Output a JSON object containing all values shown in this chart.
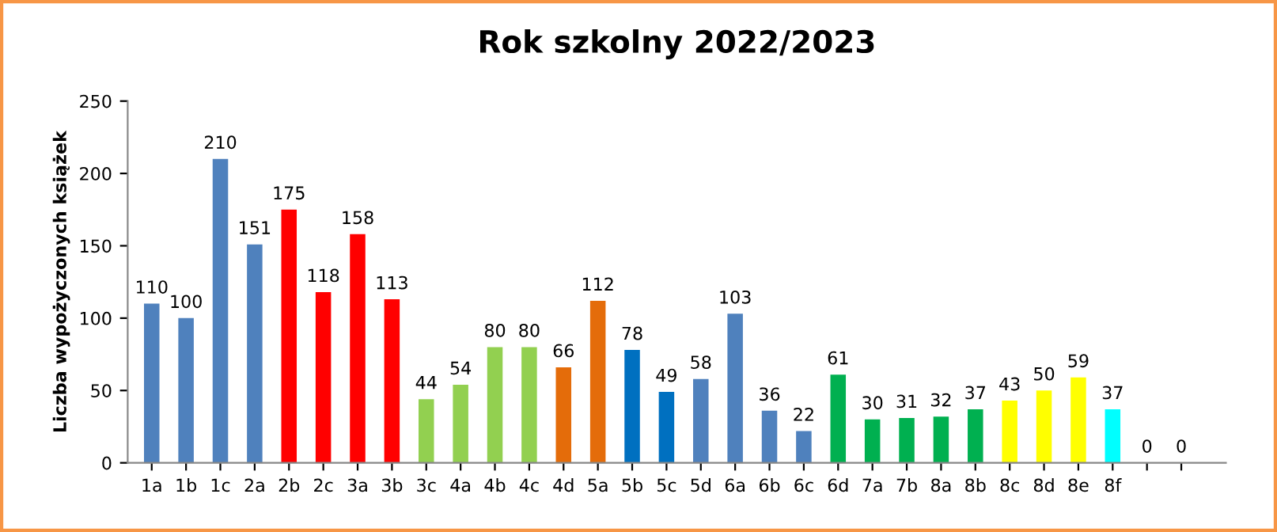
{
  "chart_data": {
    "type": "bar",
    "title": "Rok szkolny 2022/2023",
    "ylabel": "Liczba wypożyczonych książek",
    "categories": [
      "1a",
      "1b",
      "1c",
      "2a",
      "2b",
      "2c",
      "3a",
      "3b",
      "3c",
      "4a",
      "4b",
      "4c",
      "4d",
      "5a",
      "5b",
      "5c",
      "5d",
      "6a",
      "6b",
      "6c",
      "6d",
      "7a",
      "7b",
      "8a",
      "8b",
      "8c",
      "8d",
      "8e",
      "8f",
      null,
      null
    ],
    "values": [
      110,
      100,
      210,
      151,
      175,
      118,
      158,
      113,
      44,
      54,
      80,
      80,
      66,
      112,
      78,
      49,
      58,
      103,
      36,
      22,
      61,
      30,
      31,
      32,
      37,
      43,
      50,
      59,
      37,
      0,
      0
    ],
    "colors": [
      "#4f81bd",
      "#4f81bd",
      "#4f81bd",
      "#4f81bd",
      "#ff0000",
      "#ff0000",
      "#ff0000",
      "#ff0000",
      "#92d050",
      "#92d050",
      "#92d050",
      "#92d050",
      "#e46c0a",
      "#e46c0a",
      "#0070c0",
      "#0070c0",
      "#4f81bd",
      "#4f81bd",
      "#4f81bd",
      "#4f81bd",
      "#00b050",
      "#00b050",
      "#00b050",
      "#00b050",
      "#00b050",
      "#ffff00",
      "#ffff00",
      "#ffff00",
      "#00ffff",
      "#00ffff",
      "#00ffff"
    ],
    "ylim": [
      0,
      250
    ],
    "yticks": [
      0,
      50,
      100,
      150,
      200,
      250
    ],
    "data_labels": true,
    "grid": false
  }
}
